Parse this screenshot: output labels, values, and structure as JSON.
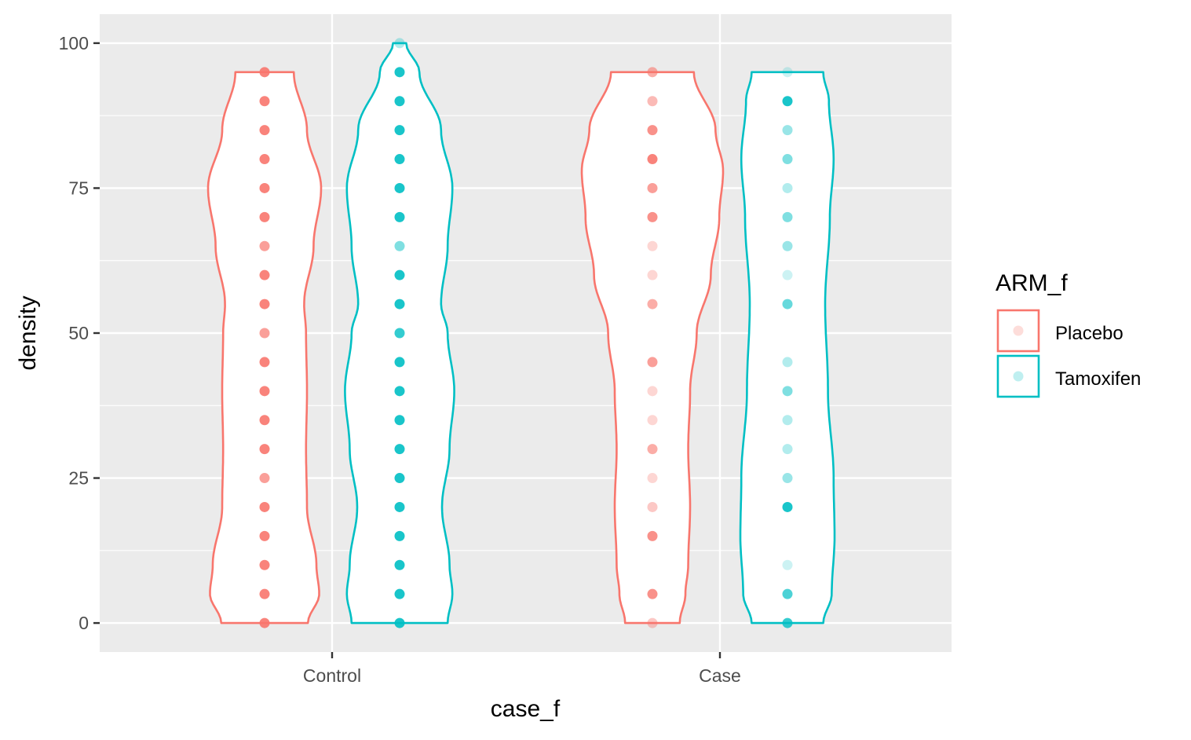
{
  "chart_data": {
    "type": "violin",
    "xlabel": "case_f",
    "ylabel": "density",
    "ylim": [
      -5,
      105
    ],
    "yticks": [
      0,
      25,
      50,
      75,
      100
    ],
    "categories": [
      "Control",
      "Case"
    ],
    "grid": true,
    "legend": {
      "title": "ARM_f",
      "placement": "right",
      "entries": [
        "Placebo",
        "Tamoxifen"
      ]
    },
    "colors": {
      "Placebo": "#F8766D",
      "Tamoxifen": "#00BFC4",
      "panel": "#EBEBEB",
      "grid": "#FFFFFF"
    },
    "groups": [
      {
        "category": "Control",
        "series": "Placebo",
        "range": [
          0,
          95
        ],
        "density_profile": [
          [
            0,
            0.46
          ],
          [
            5,
            0.58
          ],
          [
            10,
            0.55
          ],
          [
            20,
            0.45
          ],
          [
            30,
            0.44
          ],
          [
            40,
            0.45
          ],
          [
            50,
            0.44
          ],
          [
            55,
            0.42
          ],
          [
            65,
            0.52
          ],
          [
            75,
            0.6
          ],
          [
            85,
            0.45
          ],
          [
            95,
            0.31
          ]
        ],
        "points": [
          {
            "y": 0,
            "alpha": 0.9
          },
          {
            "y": 5,
            "alpha": 0.9
          },
          {
            "y": 10,
            "alpha": 0.9
          },
          {
            "y": 15,
            "alpha": 0.9
          },
          {
            "y": 20,
            "alpha": 0.9
          },
          {
            "y": 25,
            "alpha": 0.7
          },
          {
            "y": 30,
            "alpha": 0.9
          },
          {
            "y": 35,
            "alpha": 0.9
          },
          {
            "y": 40,
            "alpha": 0.9
          },
          {
            "y": 45,
            "alpha": 0.9
          },
          {
            "y": 50,
            "alpha": 0.7
          },
          {
            "y": 55,
            "alpha": 0.9
          },
          {
            "y": 60,
            "alpha": 0.9
          },
          {
            "y": 65,
            "alpha": 0.7
          },
          {
            "y": 70,
            "alpha": 0.9
          },
          {
            "y": 75,
            "alpha": 0.9
          },
          {
            "y": 80,
            "alpha": 0.9
          },
          {
            "y": 85,
            "alpha": 0.9
          },
          {
            "y": 90,
            "alpha": 0.9
          },
          {
            "y": 95,
            "alpha": 0.9
          }
        ]
      },
      {
        "category": "Control",
        "series": "Tamoxifen",
        "range": [
          0,
          100
        ],
        "density_profile": [
          [
            0,
            0.51
          ],
          [
            5,
            0.56
          ],
          [
            10,
            0.53
          ],
          [
            20,
            0.45
          ],
          [
            30,
            0.53
          ],
          [
            40,
            0.58
          ],
          [
            50,
            0.51
          ],
          [
            55,
            0.44
          ],
          [
            65,
            0.51
          ],
          [
            75,
            0.56
          ],
          [
            85,
            0.44
          ],
          [
            95,
            0.21
          ],
          [
            100,
            0.07
          ]
        ],
        "points": [
          {
            "y": 0,
            "alpha": 0.9
          },
          {
            "y": 5,
            "alpha": 0.9
          },
          {
            "y": 10,
            "alpha": 0.9
          },
          {
            "y": 15,
            "alpha": 0.9
          },
          {
            "y": 20,
            "alpha": 0.9
          },
          {
            "y": 25,
            "alpha": 0.9
          },
          {
            "y": 30,
            "alpha": 0.9
          },
          {
            "y": 35,
            "alpha": 0.9
          },
          {
            "y": 40,
            "alpha": 0.9
          },
          {
            "y": 45,
            "alpha": 0.9
          },
          {
            "y": 50,
            "alpha": 0.8
          },
          {
            "y": 55,
            "alpha": 0.9
          },
          {
            "y": 60,
            "alpha": 0.9
          },
          {
            "y": 65,
            "alpha": 0.5
          },
          {
            "y": 70,
            "alpha": 0.9
          },
          {
            "y": 75,
            "alpha": 0.9
          },
          {
            "y": 80,
            "alpha": 0.9
          },
          {
            "y": 85,
            "alpha": 0.9
          },
          {
            "y": 90,
            "alpha": 0.9
          },
          {
            "y": 95,
            "alpha": 0.9
          },
          {
            "y": 100,
            "alpha": 0.3
          }
        ]
      },
      {
        "category": "Case",
        "series": "Placebo",
        "range": [
          0,
          95
        ],
        "density_profile": [
          [
            0,
            0.29
          ],
          [
            5,
            0.35
          ],
          [
            10,
            0.38
          ],
          [
            20,
            0.4
          ],
          [
            30,
            0.38
          ],
          [
            40,
            0.4
          ],
          [
            50,
            0.47
          ],
          [
            60,
            0.62
          ],
          [
            70,
            0.71
          ],
          [
            78,
            0.75
          ],
          [
            85,
            0.67
          ],
          [
            95,
            0.44
          ]
        ],
        "points": [
          {
            "y": 0,
            "alpha": 0.4
          },
          {
            "y": 5,
            "alpha": 0.8
          },
          {
            "y": 15,
            "alpha": 0.8
          },
          {
            "y": 20,
            "alpha": 0.4
          },
          {
            "y": 25,
            "alpha": 0.3
          },
          {
            "y": 30,
            "alpha": 0.6
          },
          {
            "y": 35,
            "alpha": 0.3
          },
          {
            "y": 40,
            "alpha": 0.3
          },
          {
            "y": 45,
            "alpha": 0.7
          },
          {
            "y": 55,
            "alpha": 0.6
          },
          {
            "y": 60,
            "alpha": 0.3
          },
          {
            "y": 65,
            "alpha": 0.3
          },
          {
            "y": 70,
            "alpha": 0.8
          },
          {
            "y": 75,
            "alpha": 0.7
          },
          {
            "y": 80,
            "alpha": 0.9
          },
          {
            "y": 85,
            "alpha": 0.8
          },
          {
            "y": 90,
            "alpha": 0.5
          },
          {
            "y": 95,
            "alpha": 0.6
          }
        ]
      },
      {
        "category": "Case",
        "series": "Tamoxifen",
        "range": [
          0,
          95
        ],
        "density_profile": [
          [
            0,
            0.38
          ],
          [
            5,
            0.47
          ],
          [
            15,
            0.5
          ],
          [
            25,
            0.49
          ],
          [
            40,
            0.43
          ],
          [
            55,
            0.4
          ],
          [
            70,
            0.45
          ],
          [
            80,
            0.49
          ],
          [
            90,
            0.44
          ],
          [
            95,
            0.38
          ]
        ],
        "points": [
          {
            "y": 0,
            "alpha": 0.8
          },
          {
            "y": 5,
            "alpha": 0.7
          },
          {
            "y": 10,
            "alpha": 0.2
          },
          {
            "y": 20,
            "alpha": 0.9
          },
          {
            "y": 25,
            "alpha": 0.4
          },
          {
            "y": 30,
            "alpha": 0.3
          },
          {
            "y": 35,
            "alpha": 0.3
          },
          {
            "y": 40,
            "alpha": 0.5
          },
          {
            "y": 45,
            "alpha": 0.3
          },
          {
            "y": 55,
            "alpha": 0.6
          },
          {
            "y": 60,
            "alpha": 0.2
          },
          {
            "y": 65,
            "alpha": 0.4
          },
          {
            "y": 70,
            "alpha": 0.5
          },
          {
            "y": 75,
            "alpha": 0.3
          },
          {
            "y": 80,
            "alpha": 0.5
          },
          {
            "y": 85,
            "alpha": 0.4
          },
          {
            "y": 90,
            "alpha": 0.9
          },
          {
            "y": 95,
            "alpha": 0.2
          }
        ]
      }
    ]
  }
}
